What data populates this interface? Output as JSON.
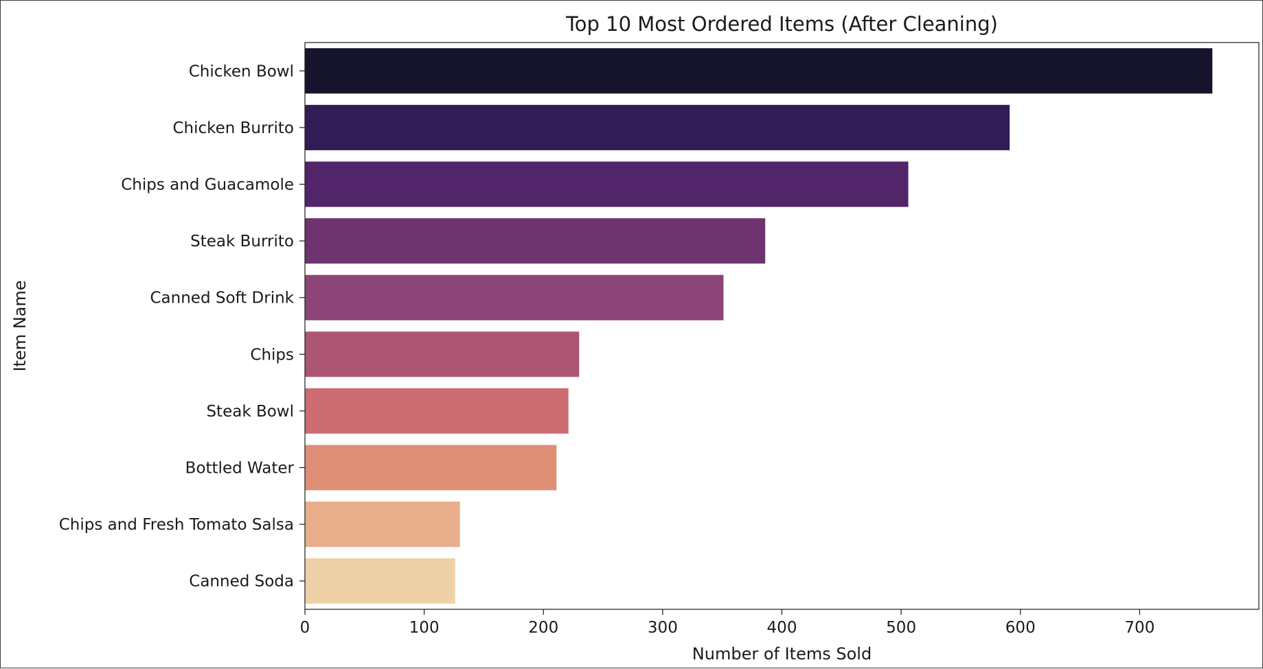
{
  "chart_data": {
    "type": "bar",
    "orientation": "horizontal",
    "title": "Top 10 Most Ordered Items (After Cleaning)",
    "xlabel": "Number of Items Sold",
    "ylabel": "Item Name",
    "xlim": [
      0,
      800
    ],
    "xticks": [
      0,
      100,
      200,
      300,
      400,
      500,
      600,
      700
    ],
    "grid": false,
    "categories": [
      "Chicken Bowl",
      "Chicken Burrito",
      "Chips and Guacamole",
      "Steak Burrito",
      "Canned Soft Drink",
      "Chips",
      "Steak Bowl",
      "Bottled Water",
      "Chips and Fresh Tomato Salsa",
      "Canned Soda"
    ],
    "values": [
      761,
      591,
      506,
      386,
      351,
      230,
      221,
      211,
      130,
      126
    ],
    "colors": [
      "#16132d",
      "#321c56",
      "#52246a",
      "#6d3470",
      "#8c4576",
      "#ad5673",
      "#cd6c71",
      "#df8e76",
      "#e9ae8b",
      "#efd1a7"
    ]
  }
}
